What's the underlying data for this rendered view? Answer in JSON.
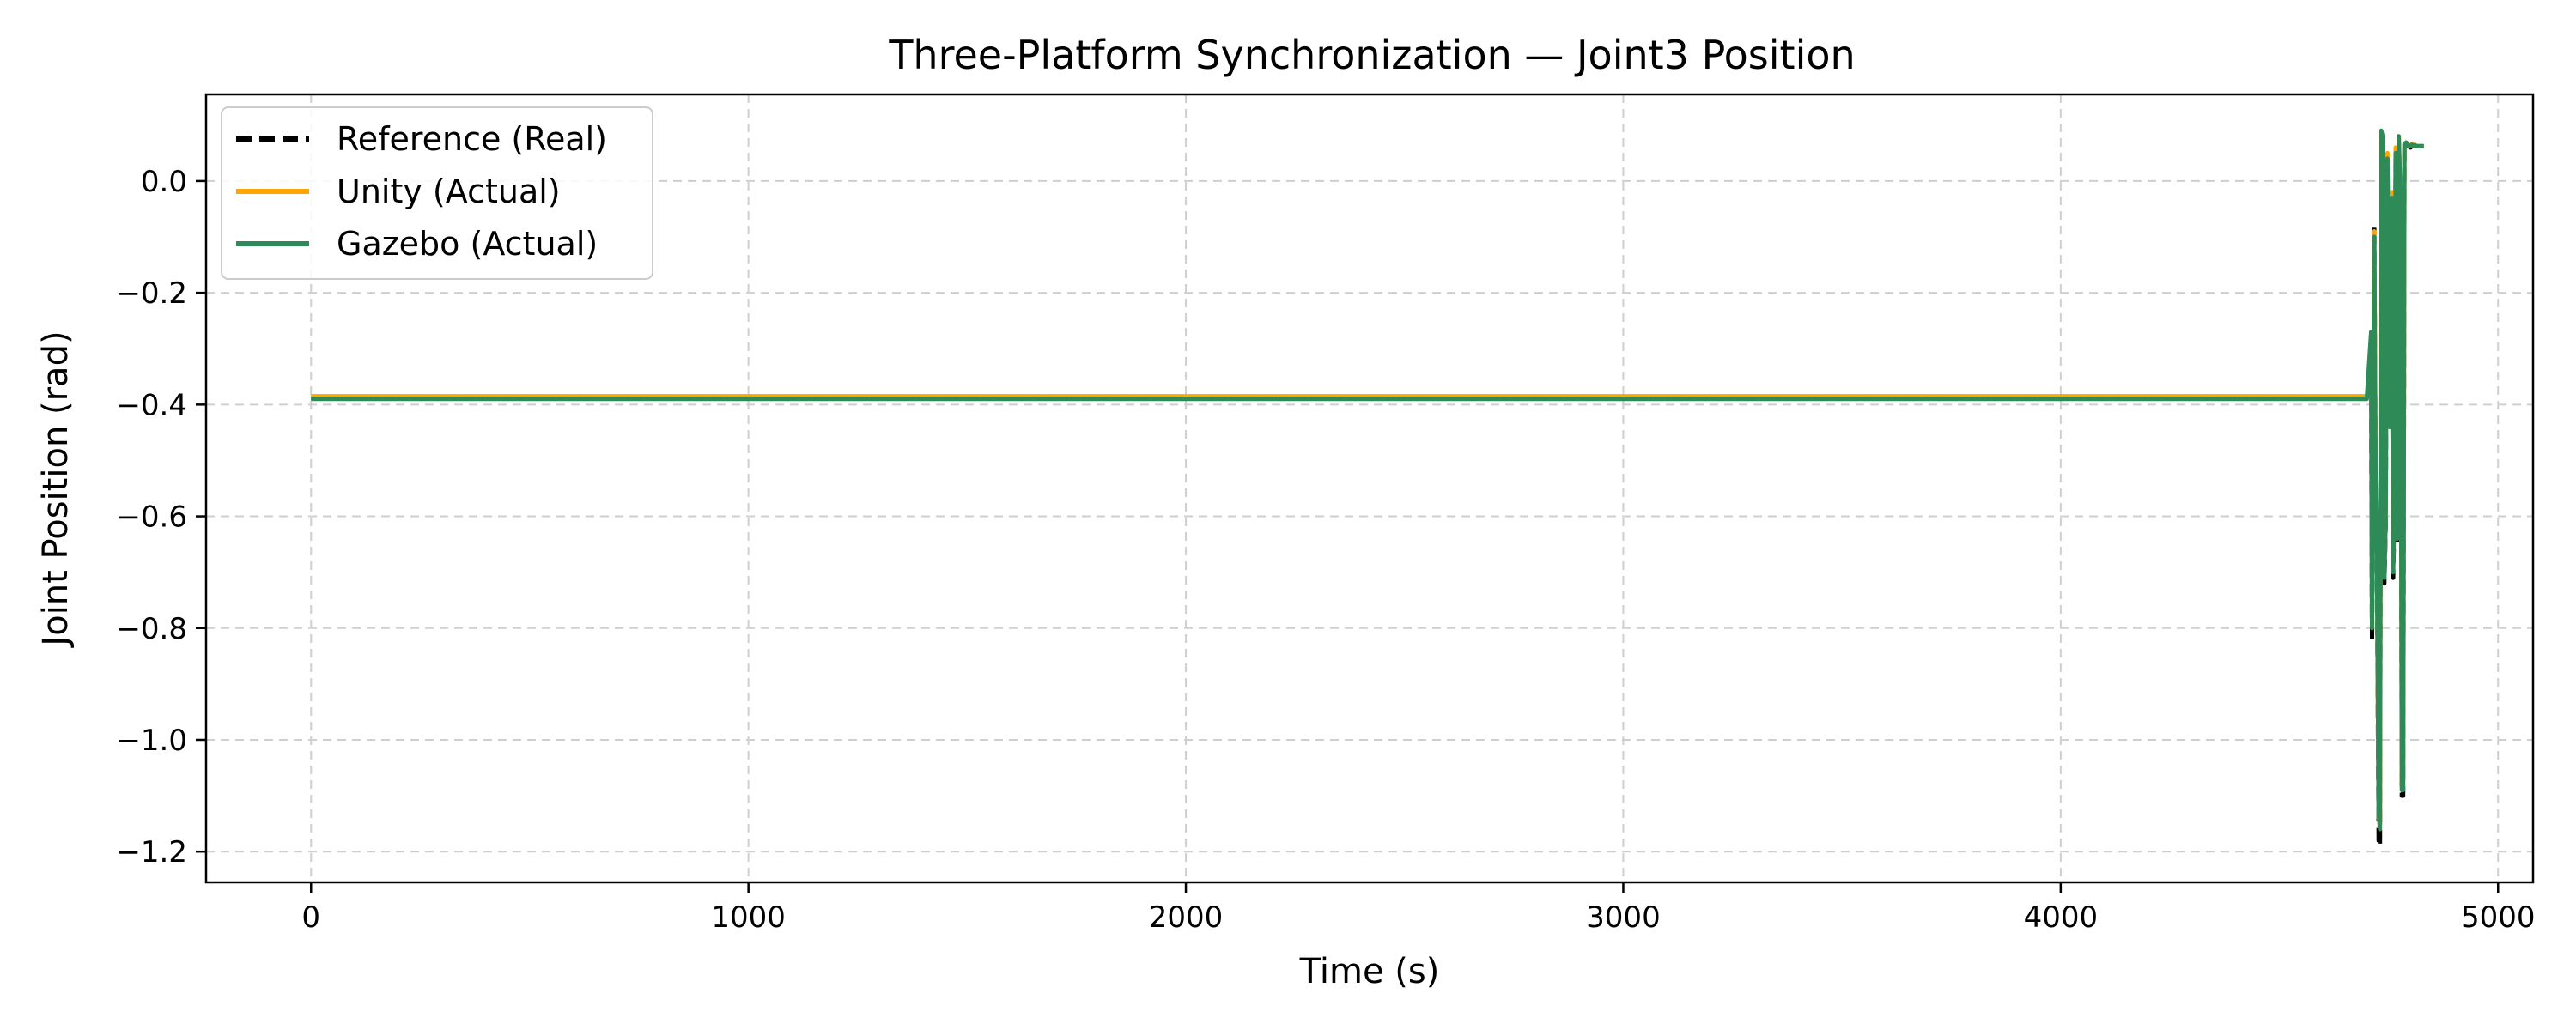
{
  "chart_data": {
    "type": "line",
    "title": "Three-Platform Synchronization — Joint3 Position",
    "xlabel": "Time (s)",
    "ylabel": "Joint Position (rad)",
    "xlim": [
      -240,
      5080
    ],
    "ylim": [
      -1.255,
      0.155
    ],
    "xticks": [
      0,
      1000,
      2000,
      3000,
      4000,
      5000
    ],
    "xtick_labels": [
      "0",
      "1000",
      "2000",
      "3000",
      "4000",
      "5000"
    ],
    "yticks": [
      0.0,
      -0.2,
      -0.4,
      -0.6,
      -0.8,
      -1.0,
      -1.2
    ],
    "ytick_labels": [
      "0.0",
      "−0.2",
      "−0.4",
      "−0.6",
      "−0.8",
      "−1.0",
      "−1.2"
    ],
    "grid": true,
    "legend_position": "top-left",
    "series": [
      {
        "name": "Reference (Real)",
        "color": "#000000",
        "style": "dashed",
        "x": [
          0,
          4700,
          4710,
          4712,
          4717,
          4720,
          4723,
          4727,
          4730,
          4733,
          4736,
          4740,
          4743,
          4747,
          4750,
          4753,
          4757,
          4760,
          4763,
          4766,
          4770,
          4773,
          4777,
          4780,
          4783,
          4786,
          4790,
          4793,
          4796,
          4800,
          4803,
          4806,
          4810,
          4813,
          4830
        ],
        "y": [
          -0.388,
          -0.388,
          -0.388,
          -0.82,
          -0.08,
          -0.55,
          -0.66,
          -1.18,
          -1.19,
          0.07,
          0.06,
          -0.72,
          -0.62,
          0.04,
          -0.28,
          -0.44,
          -0.02,
          -0.71,
          -0.6,
          0.05,
          -0.65,
          0.07,
          -0.05,
          -1.1,
          -1.1,
          0.06,
          0.07,
          0.065,
          0.062,
          0.06,
          0.065,
          0.062,
          0.063,
          0.062,
          0.062
        ]
      },
      {
        "name": "Unity (Actual)",
        "color": "#ffa500",
        "style": "solid",
        "x": [
          0,
          4700,
          4710,
          4712,
          4717,
          4720,
          4723,
          4727,
          4730,
          4733,
          4736,
          4740,
          4743,
          4747,
          4750,
          4753,
          4757,
          4760,
          4763,
          4766,
          4770,
          4773,
          4777,
          4780,
          4783,
          4786,
          4790,
          4793,
          4796,
          4800,
          4803,
          4806,
          4810,
          4813,
          4830
        ],
        "y": [
          -0.385,
          -0.385,
          -0.36,
          -0.79,
          -0.09,
          -0.53,
          -0.64,
          -1.14,
          -1.15,
          0.08,
          0.07,
          -0.7,
          -0.6,
          0.05,
          -0.27,
          -0.43,
          -0.02,
          -0.69,
          -0.58,
          0.06,
          -0.63,
          0.08,
          -0.04,
          -1.08,
          -1.08,
          0.065,
          0.068,
          0.066,
          0.064,
          0.063,
          0.066,
          0.064,
          0.065,
          0.063,
          0.063
        ]
      },
      {
        "name": "Gazebo (Actual)",
        "color": "#2e8b57",
        "style": "solid",
        "x": [
          0,
          4700,
          4710,
          4712,
          4717,
          4720,
          4723,
          4727,
          4730,
          4733,
          4736,
          4740,
          4743,
          4747,
          4750,
          4753,
          4757,
          4760,
          4763,
          4766,
          4770,
          4773,
          4777,
          4780,
          4783,
          4786,
          4790,
          4793,
          4796,
          4800,
          4803,
          4806,
          4810,
          4813,
          4830
        ],
        "y": [
          -0.39,
          -0.39,
          -0.27,
          -0.8,
          -0.1,
          -0.54,
          -0.65,
          -1.13,
          -1.16,
          0.09,
          0.08,
          -0.71,
          -0.61,
          0.04,
          -0.28,
          -0.44,
          -0.03,
          -0.7,
          -0.59,
          0.05,
          -0.64,
          0.08,
          -0.05,
          -1.09,
          -1.09,
          0.066,
          0.069,
          0.065,
          0.063,
          0.062,
          0.065,
          0.063,
          0.064,
          0.062,
          0.062
        ]
      }
    ]
  }
}
